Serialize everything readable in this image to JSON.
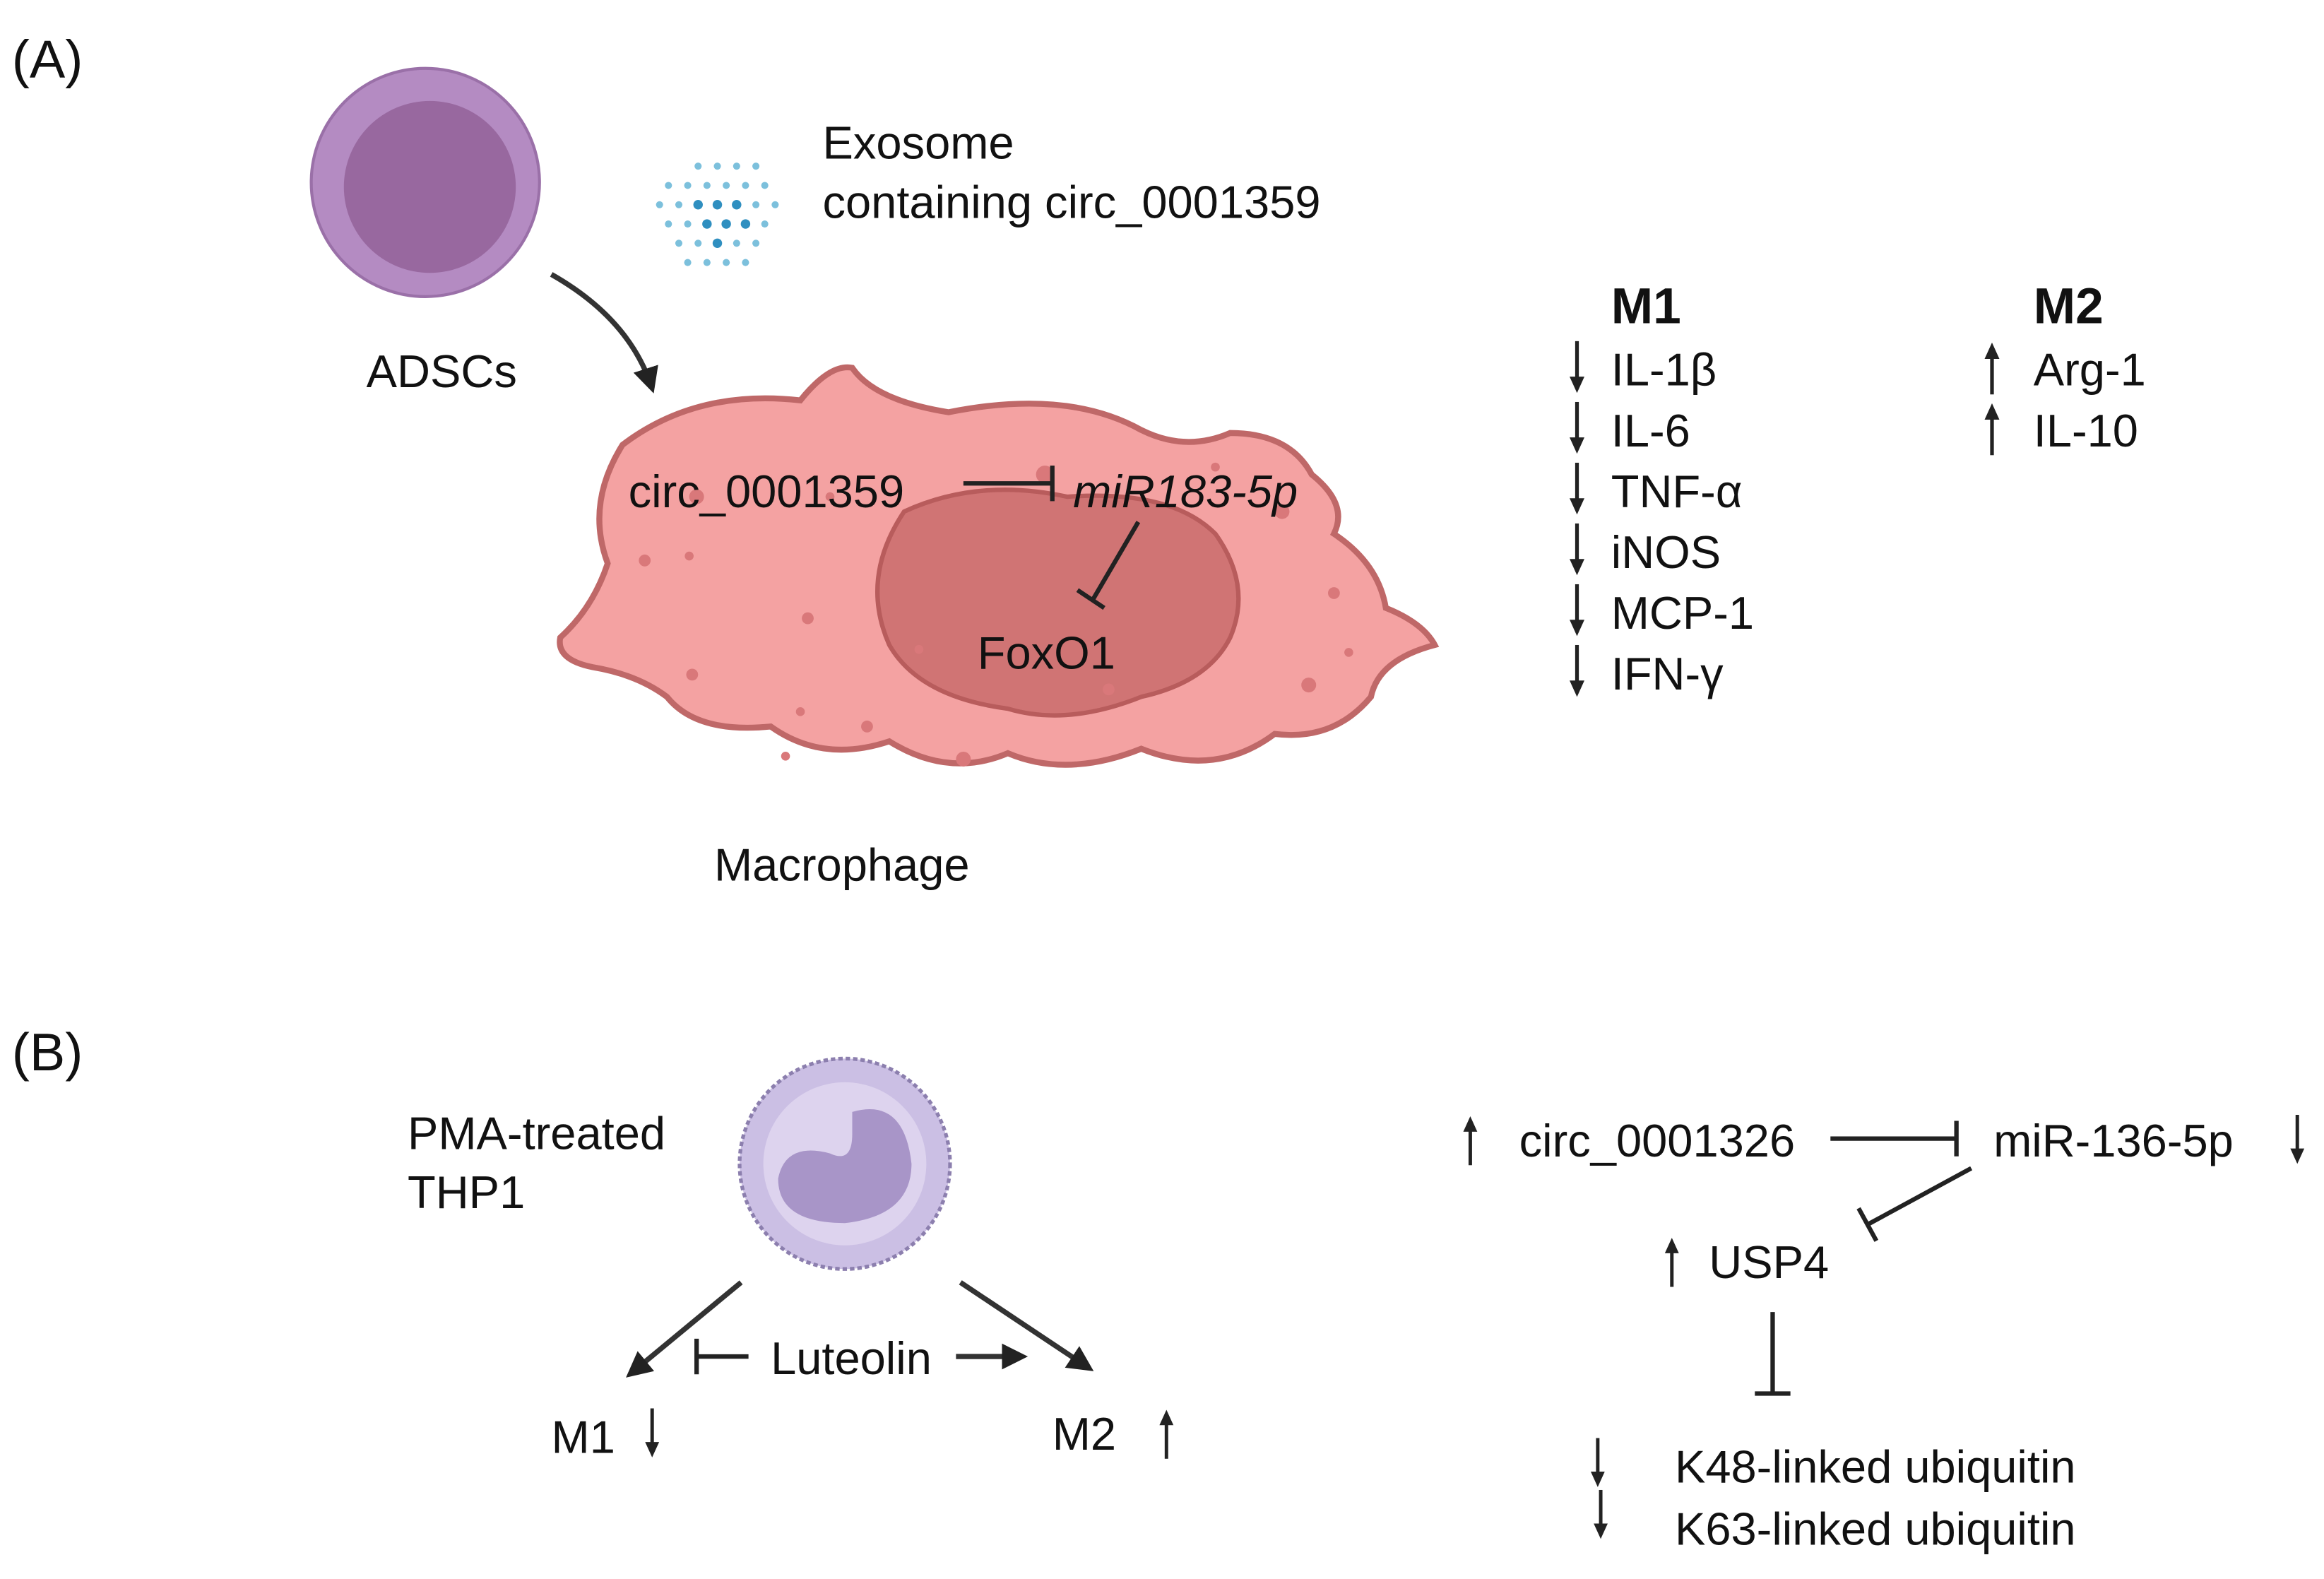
{
  "panel_a": {
    "label": "(A)",
    "source_cell_label": "ADSCs",
    "exosome_label_line1": "Exosome",
    "exosome_label_line2": "containing circ_0001359",
    "target_cell_label": "Macrophage",
    "circ_label": "circ_0001359",
    "mirna_label": "miR183-5p",
    "target_gene_label": "FoxO1",
    "m1": {
      "title": "M1",
      "direction": "down",
      "markers": [
        "IL-1β",
        "IL-6",
        "TNF-α",
        "iNOS",
        "MCP-1",
        "IFN-γ"
      ]
    },
    "m2": {
      "title": "M2",
      "direction": "up",
      "markers": [
        "Arg-1",
        "IL-10"
      ]
    },
    "colors": {
      "adsc_outer": "#b48bc2",
      "adsc_inner": "#98689f",
      "macrophage_fill": "#f4a2a2",
      "macrophage_stroke": "#bf6868",
      "nucleus_fill": "#d07474",
      "exosome": "#4aa3c8"
    }
  },
  "panel_b": {
    "label": "(B)",
    "cell_label_line1": "PMA-treated",
    "cell_label_line2": "THP1",
    "drug_label": "Luteolin",
    "m1_label": "M1",
    "m1_direction": "down",
    "m2_label": "M2",
    "m2_direction": "up",
    "circ_label": "circ_0001326",
    "circ_direction": "up",
    "mirna_label": "miR-136-5p",
    "mirna_direction": "down",
    "usp_label": "USP4",
    "usp_direction": "up",
    "ubiquitin": [
      {
        "label": "K48-linked ubiquitin",
        "direction": "down"
      },
      {
        "label": "K63-linked ubiquitin",
        "direction": "down"
      }
    ],
    "colors": {
      "thp1_fill": "#cbbfe4",
      "thp1_nucleus": "#a895c8"
    }
  }
}
